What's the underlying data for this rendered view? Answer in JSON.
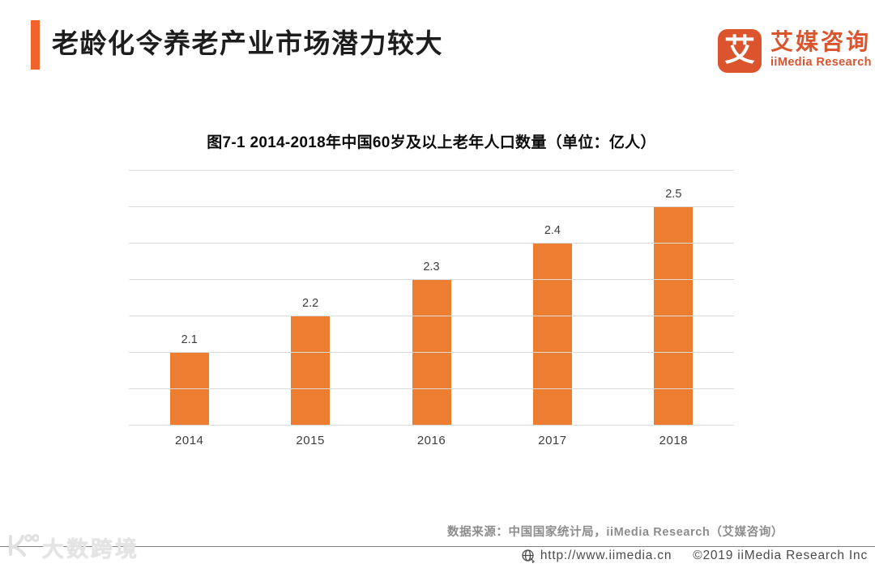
{
  "header": {
    "title": "老龄化令养老产业市场潜力较大",
    "accent_color": "#F2622B",
    "logo": {
      "glyph": "艾",
      "name_cn": "艾媒咨询",
      "name_en": "iiMedia Research",
      "brand_color": "#DB542E"
    }
  },
  "chart_data": {
    "type": "bar",
    "title": "图7-1 2014-2018年中国60岁及以上老年人口数量（单位：亿人）",
    "categories": [
      "2014",
      "2015",
      "2016",
      "2017",
      "2018"
    ],
    "values": [
      2.1,
      2.2,
      2.3,
      2.4,
      2.5
    ],
    "unit": "亿人",
    "ylim": [
      1.9,
      2.6
    ],
    "grid_step": 0.1,
    "grid": true,
    "legend": false,
    "data_labels": true,
    "bar_color": "#ED7D31"
  },
  "source_note": "数据来源：中国国家统计局，iiMedia Research（艾媒咨询）",
  "footer": {
    "url": "http://www.iimedia.cn",
    "copyright": "©2019  iiMedia Research Inc"
  },
  "watermark": {
    "text": "大数跨境"
  }
}
